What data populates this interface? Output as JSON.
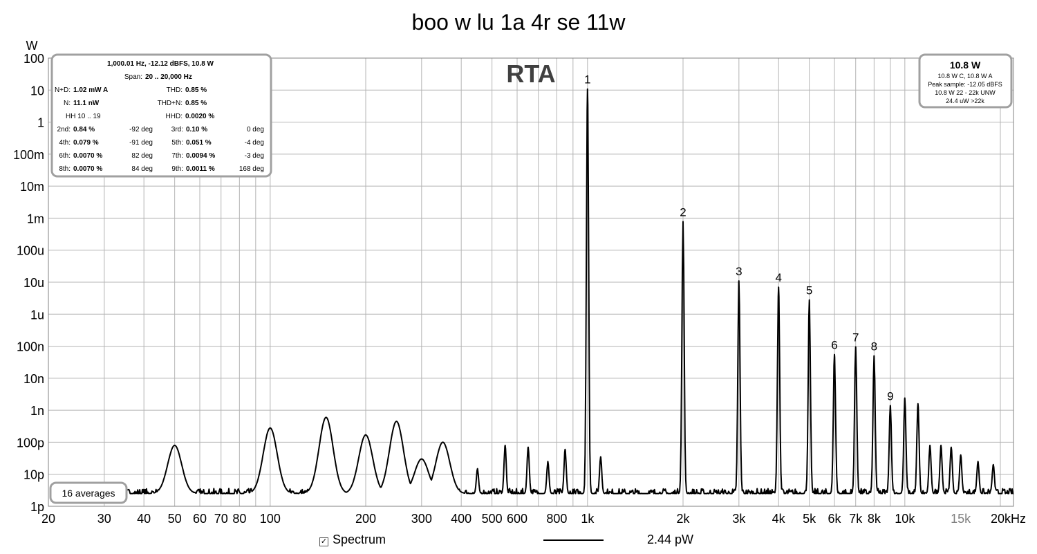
{
  "chart_data": {
    "type": "line",
    "title": "boo w lu 1a 4r se 11w",
    "watermark": "RTA",
    "ylabel": "W",
    "x_scale": "log",
    "y_scale": "log",
    "xlim": [
      20,
      22000
    ],
    "ylim": [
      1e-12,
      100
    ],
    "x_ticks": [
      {
        "value": 20,
        "label": "20"
      },
      {
        "value": 30,
        "label": "30"
      },
      {
        "value": 40,
        "label": "40"
      },
      {
        "value": 50,
        "label": "50"
      },
      {
        "value": 60,
        "label": "60"
      },
      {
        "value": 70,
        "label": "70"
      },
      {
        "value": 80,
        "label": "80"
      },
      {
        "value": 100,
        "label": "100"
      },
      {
        "value": 200,
        "label": "200"
      },
      {
        "value": 300,
        "label": "300"
      },
      {
        "value": 400,
        "label": "400"
      },
      {
        "value": 500,
        "label": "500"
      },
      {
        "value": 600,
        "label": "600"
      },
      {
        "value": 800,
        "label": "800"
      },
      {
        "value": 1000,
        "label": "1k"
      },
      {
        "value": 2000,
        "label": "2k"
      },
      {
        "value": 3000,
        "label": "3k"
      },
      {
        "value": 4000,
        "label": "4k"
      },
      {
        "value": 5000,
        "label": "5k"
      },
      {
        "value": 6000,
        "label": "6k"
      },
      {
        "value": 7000,
        "label": "7k"
      },
      {
        "value": 8000,
        "label": "8k"
      },
      {
        "value": 10000,
        "label": "10k"
      },
      {
        "value": 15000,
        "label": "15k",
        "grey": true
      },
      {
        "value": 20000,
        "label": "20kHz"
      }
    ],
    "y_ticks": [
      {
        "value": 100,
        "label": "100"
      },
      {
        "value": 10,
        "label": "10"
      },
      {
        "value": 1,
        "label": "1"
      },
      {
        "value": 0.1,
        "label": "100m"
      },
      {
        "value": 0.01,
        "label": "10m"
      },
      {
        "value": 0.001,
        "label": "1m"
      },
      {
        "value": 0.0001,
        "label": "100u"
      },
      {
        "value": 1e-05,
        "label": "10u"
      },
      {
        "value": 1e-06,
        "label": "1u"
      },
      {
        "value": 1e-07,
        "label": "100n"
      },
      {
        "value": 1e-08,
        "label": "10n"
      },
      {
        "value": 1e-09,
        "label": "1n"
      },
      {
        "value": 1e-10,
        "label": "100p"
      },
      {
        "value": 1e-11,
        "label": "10p"
      },
      {
        "value": 1e-12,
        "label": "1p"
      }
    ],
    "grid": true,
    "series": [
      {
        "name": "Spectrum",
        "color": "#000000",
        "peaks": [
          {
            "x": 50,
            "y": 8e-11
          },
          {
            "x": 100,
            "y": 2.8e-10
          },
          {
            "x": 150,
            "y": 6e-10
          },
          {
            "x": 200,
            "y": 1.7e-10
          },
          {
            "x": 250,
            "y": 4.5e-10
          },
          {
            "x": 300,
            "y": 3e-11
          },
          {
            "x": 350,
            "y": 1e-10
          },
          {
            "x": 450,
            "y": 1.5e-11
          },
          {
            "x": 550,
            "y": 8e-11
          },
          {
            "x": 650,
            "y": 7e-11
          },
          {
            "x": 750,
            "y": 2.5e-11
          },
          {
            "x": 850,
            "y": 6e-11
          },
          {
            "x": 1000,
            "y": 10.8
          },
          {
            "x": 1100,
            "y": 3.5e-11
          },
          {
            "x": 2000,
            "y": 0.00078
          },
          {
            "x": 3000,
            "y": 1.1e-05
          },
          {
            "x": 4000,
            "y": 7e-06
          },
          {
            "x": 5000,
            "y": 2.8e-06
          },
          {
            "x": 6000,
            "y": 5.5e-08
          },
          {
            "x": 7000,
            "y": 9.5e-08
          },
          {
            "x": 8000,
            "y": 5e-08
          },
          {
            "x": 9000,
            "y": 1.4e-09
          },
          {
            "x": 10000,
            "y": 2.4e-09
          },
          {
            "x": 11000,
            "y": 1.6e-09
          },
          {
            "x": 12000,
            "y": 8e-11
          },
          {
            "x": 13000,
            "y": 8e-11
          },
          {
            "x": 14000,
            "y": 7e-11
          },
          {
            "x": 15000,
            "y": 4e-11
          },
          {
            "x": 17000,
            "y": 2.5e-11
          },
          {
            "x": 19000,
            "y": 2e-11
          }
        ],
        "noise_floor": 2.5e-12
      }
    ],
    "harmonic_labels": [
      {
        "label": "1",
        "x": 1000
      },
      {
        "label": "2",
        "x": 2000
      },
      {
        "label": "3",
        "x": 3000
      },
      {
        "label": "4",
        "x": 4000
      },
      {
        "label": "5",
        "x": 5000
      },
      {
        "label": "6",
        "x": 6000
      },
      {
        "label": "7",
        "x": 7000
      },
      {
        "label": "8",
        "x": 8000
      },
      {
        "label": "9",
        "x": 9000
      }
    ]
  },
  "info_box": {
    "header": "1,000.01 Hz, -12.12 dBFS, 10.8 W",
    "span_label": "Span:",
    "span_value": "20 .. 20,000 Hz",
    "rows": [
      {
        "l1": "N+D:",
        "v1": "1.02 mW A",
        "l2": "THD:",
        "v2": "0.85 %",
        "p2": ""
      },
      {
        "l1": "N:",
        "v1": "11.1 nW",
        "l2": "THD+N:",
        "v2": "0.85 %",
        "p2": ""
      },
      {
        "l1": "HH 10 .. 19",
        "v1": "",
        "l2": "HHD:",
        "v2": "0.0020 %",
        "p2": ""
      }
    ],
    "harmonics": [
      {
        "l1": "2nd:",
        "v1": "0.84 %",
        "p1": "-92 deg",
        "l2": "3rd:",
        "v2": "0.10 %",
        "p2": "0 deg"
      },
      {
        "l1": "4th:",
        "v1": "0.079 %",
        "p1": "-91 deg",
        "l2": "5th:",
        "v2": "0.051 %",
        "p2": "-4 deg"
      },
      {
        "l1": "6th:",
        "v1": "0.0070 %",
        "p1": "82 deg",
        "l2": "7th:",
        "v2": "0.0094 %",
        "p2": "-3 deg"
      },
      {
        "l1": "8th:",
        "v1": "0.0070 %",
        "p1": "84 deg",
        "l2": "9th:",
        "v2": "0.0011 %",
        "p2": "168 deg"
      }
    ]
  },
  "power_box": {
    "title": "10.8 W",
    "lines": [
      "10.8 W C, 10.8 W A",
      "Peak sample: -12.05 dBFS",
      "10.8 W 22 - 22k UNW",
      "24.4 uW >22k"
    ]
  },
  "averages_label": "16 averages",
  "legend": {
    "check": "✓",
    "series_label": "Spectrum",
    "value_label": "2.44 pW"
  }
}
